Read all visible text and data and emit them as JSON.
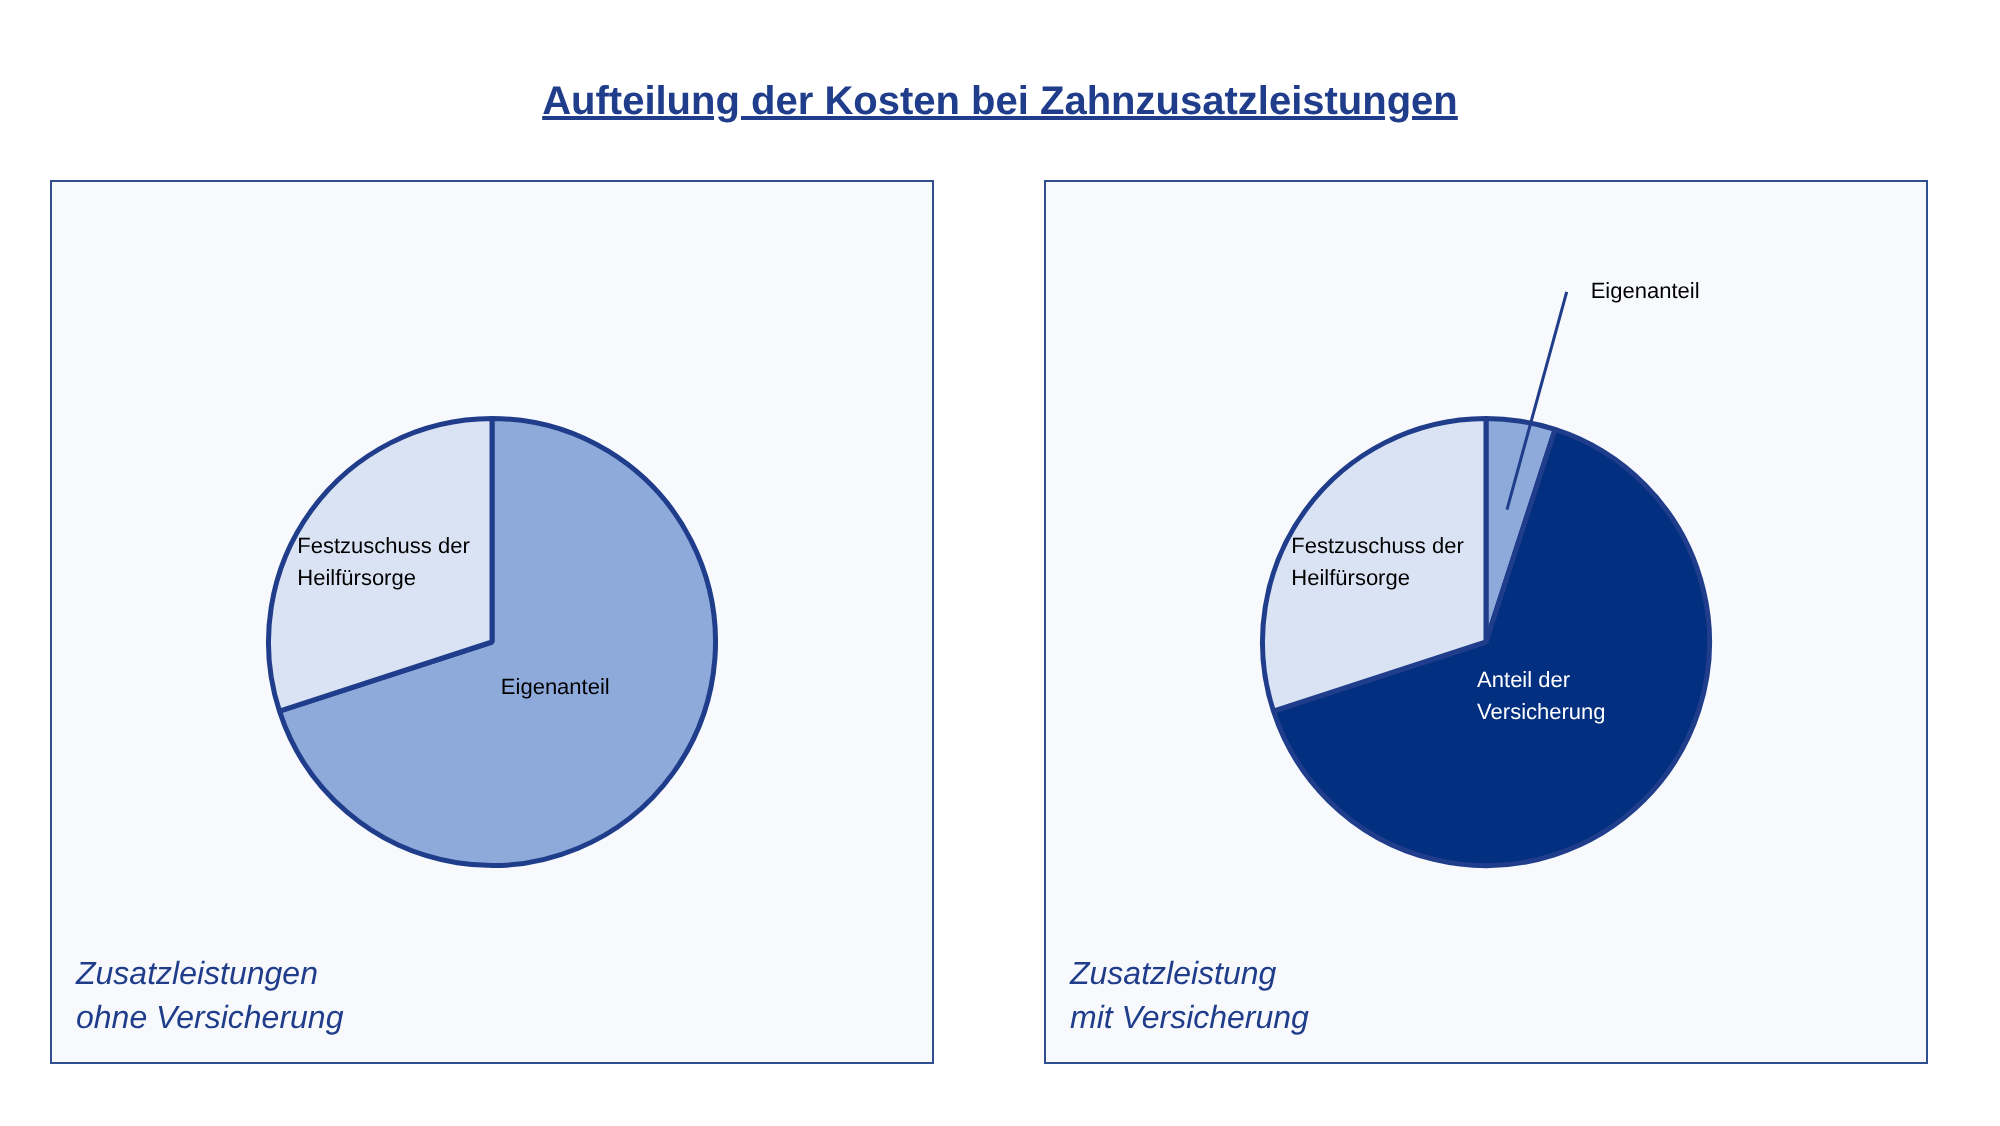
{
  "chart_data": [
    {
      "type": "pie",
      "title": "Aufteilung der Kosten bei Zahnzusatzleistungen",
      "categories": [
        "Eigenanteil",
        "Festzuschuss der Heilfürsorge"
      ],
      "values": [
        70,
        30
      ],
      "colors": [
        "#8eaadb",
        "#dae3f3"
      ],
      "annotations": [
        "Zusatzleistungen\nohne Versicherung"
      ]
    },
    {
      "type": "pie",
      "categories": [
        "Eigenanteil",
        "Anteil der Versicherung",
        "Festzuschuss der Heilfürsorge"
      ],
      "values": [
        5,
        65,
        30
      ],
      "colors": [
        "#8eaadb",
        "#022f80",
        "#dae3f3"
      ],
      "annotations": [
        "Zusatzleistung\nmit Versicherung"
      ]
    }
  ]
}
